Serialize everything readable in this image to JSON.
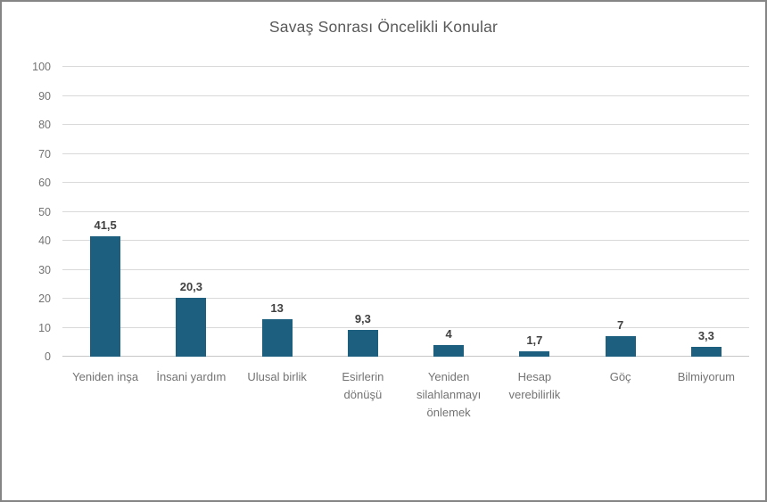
{
  "chart_data": {
    "type": "bar",
    "title": "Savaş Sonrası Öncelikli Konular",
    "categories": [
      "Yeniden inşa",
      "İnsani yardım",
      "Ulusal birlik",
      "Esirlerin dönüşü",
      "Yeniden silahlanmayı önlemek",
      "Hesap verebilirlik",
      "Göç",
      "Bilmiyorum"
    ],
    "values": [
      41.5,
      20.3,
      13,
      9.3,
      4,
      1.7,
      7,
      3.3
    ],
    "value_labels": [
      "41,5",
      "20,3",
      "13",
      "9,3",
      "4",
      "1,7",
      "7",
      "3,3"
    ],
    "xlabel": "",
    "ylabel": "",
    "ylim": [
      0,
      100
    ],
    "yticks": [
      0,
      10,
      20,
      30,
      40,
      50,
      60,
      70,
      80,
      90,
      100
    ],
    "grid": true,
    "legend": "none",
    "colors": {
      "bar": "#1c5f7e",
      "gridline": "#d9d9d9",
      "axis_line": "#c6c6c6",
      "title_text": "#595959",
      "tick_text": "#737373",
      "value_label_text": "#404040",
      "frame_border": "#858585",
      "background": "#ffffff"
    }
  }
}
